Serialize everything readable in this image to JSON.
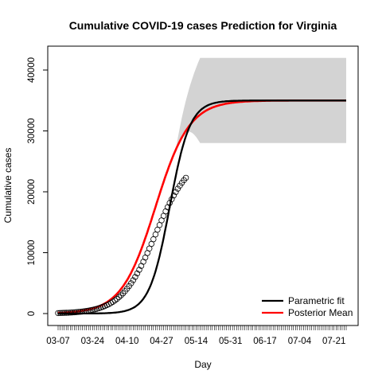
{
  "chart_data": {
    "type": "line",
    "title": "Cumulative COVID-19 cases Prediction for Virginia",
    "xlabel": "Day",
    "ylabel": "Cumulative cases",
    "x_ticks": [
      "03-07",
      "03-24",
      "04-10",
      "04-27",
      "05-14",
      "05-31",
      "06-17",
      "07-04",
      "07-21"
    ],
    "y_ticks": [
      0,
      10000,
      20000,
      30000,
      40000
    ],
    "start_date": "03-07",
    "x_range_days": [
      0,
      142
    ],
    "ylim": [
      -1200,
      43000
    ],
    "legend_position": "bottom-right",
    "series": [
      {
        "name": "Parametric fit",
        "type": "line",
        "color": "#000000",
        "midpoint_day": 55,
        "plateau": 35000,
        "growth_rate": 0.2
      },
      {
        "name": "Posterior Mean",
        "type": "line",
        "color": "#ff0000",
        "midpoint_day": 48,
        "plateau": 35000,
        "growth_rate": 0.12
      },
      {
        "name": "Credible band",
        "type": "area",
        "color": "#d3d3d3",
        "upper_plateau": 42000,
        "lower_plateau": 28000
      },
      {
        "name": "Observed",
        "type": "scatter",
        "marker": "open-circle",
        "days": [
          0,
          63
        ],
        "values": [
          0,
          22300
        ]
      }
    ]
  }
}
